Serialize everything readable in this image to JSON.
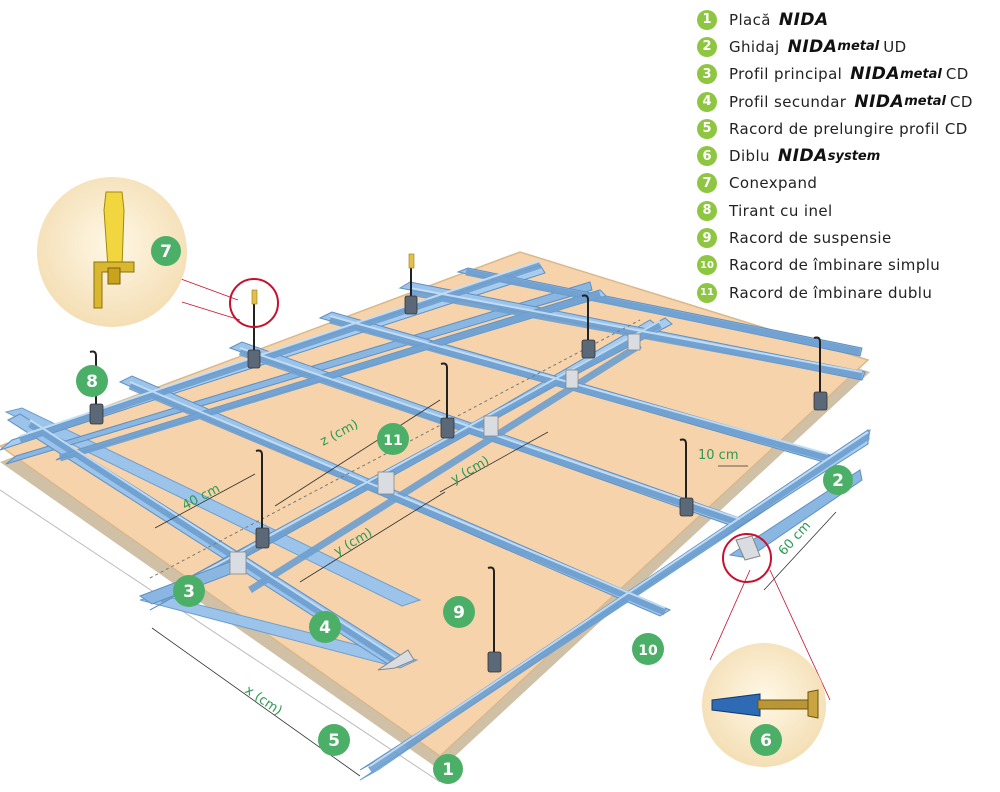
{
  "legend": {
    "items": [
      {
        "num": "1",
        "text": "Placă",
        "brand": "NIDA",
        "brand_sub": "",
        "suffix": ""
      },
      {
        "num": "2",
        "text": "Ghidaj",
        "brand": "NIDA",
        "brand_sub": "metal",
        "suffix": "UD"
      },
      {
        "num": "3",
        "text": "Profil principal",
        "brand": "NIDA",
        "brand_sub": "metal",
        "suffix": "CD"
      },
      {
        "num": "4",
        "text": "Profil secundar",
        "brand": "NIDA",
        "brand_sub": "metal",
        "suffix": "CD"
      },
      {
        "num": "5",
        "text": "Racord de prelungire profil CD",
        "brand": "",
        "brand_sub": "",
        "suffix": ""
      },
      {
        "num": "6",
        "text": "Diblu",
        "brand": "NIDA",
        "brand_sub": "system",
        "suffix": ""
      },
      {
        "num": "7",
        "text": "Conexpand",
        "brand": "",
        "brand_sub": "",
        "suffix": ""
      },
      {
        "num": "8",
        "text": "Tirant cu inel",
        "brand": "",
        "brand_sub": "",
        "suffix": ""
      },
      {
        "num": "9",
        "text": "Racord de suspensie",
        "brand": "",
        "brand_sub": "",
        "suffix": ""
      },
      {
        "num": "10",
        "text": "Racord de îmbinare simplu",
        "brand": "",
        "brand_sub": "",
        "suffix": ""
      },
      {
        "num": "11",
        "text": "Racord de îmbinare dublu",
        "brand": "",
        "brand_sub": "",
        "suffix": ""
      }
    ]
  },
  "dimensions": {
    "z": "z (cm)",
    "forty": "40 cm",
    "y1": "y (cm)",
    "y2": "y (cm)",
    "ten": "10 cm",
    "sixty": "60 cm",
    "x": "x (cm)"
  },
  "callouts": {
    "c1": "1",
    "c2": "2",
    "c3": "3",
    "c4": "4",
    "c5": "5",
    "c6": "6",
    "c7": "7",
    "c8": "8",
    "c9": "9",
    "c10": "10",
    "c11": "11"
  },
  "colors": {
    "board": "#f6d3aa",
    "profile": "#9cc4ea",
    "profile_dark": "#6d9fd0",
    "badge": "#4caf68",
    "legend_badge": "#8ec641",
    "label": "#2a9a52",
    "highlight_circle": "#c8102e"
  }
}
